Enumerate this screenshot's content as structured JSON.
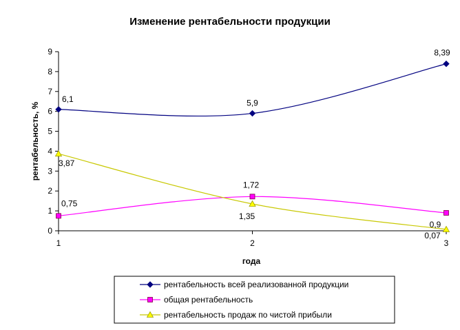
{
  "chart_data": {
    "type": "line",
    "title": "Изменение рентабельности продукции",
    "xlabel": "года",
    "ylabel": "рентабельность, %",
    "categories": [
      "1",
      "2",
      "3"
    ],
    "ylim": [
      0,
      9
    ],
    "yticks": [
      "0",
      "1",
      "2",
      "3",
      "4",
      "5",
      "6",
      "7",
      "8",
      "9"
    ],
    "grid": false,
    "legend_position": "bottom",
    "series": [
      {
        "name": "рентабельность всей реализованной продукции",
        "values": [
          6.1,
          5.9,
          8.39
        ],
        "labels": [
          "6,1",
          "5,9",
          "8,39"
        ],
        "color": "#000080",
        "marker": "diamond"
      },
      {
        "name": "общая рентабельность",
        "values": [
          0.75,
          1.72,
          0.9
        ],
        "labels": [
          "0,75",
          "1,72",
          "0,9"
        ],
        "color": "#ff00ff",
        "marker": "square"
      },
      {
        "name": "рентабельность продаж по чистой прибыли",
        "values": [
          3.87,
          1.35,
          0.07
        ],
        "labels": [
          "3,87",
          "1,35",
          "0,07"
        ],
        "color": "#c8c800",
        "marker": "triangle"
      }
    ]
  }
}
